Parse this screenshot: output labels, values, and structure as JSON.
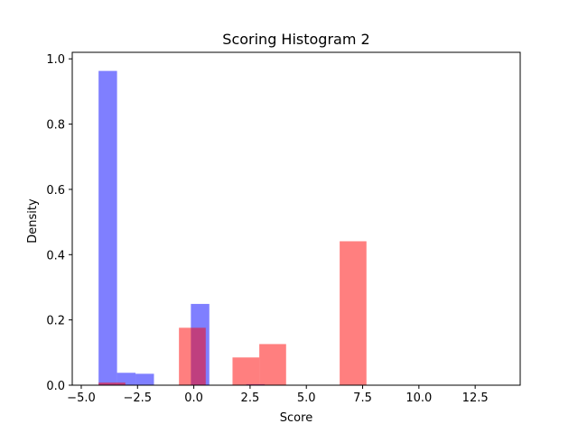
{
  "chart_data": {
    "type": "bar",
    "title": "Scoring Histogram 2",
    "xlabel": "Score",
    "ylabel": "Density",
    "xlim": [
      -5.4,
      14.5
    ],
    "ylim": [
      0,
      1.02
    ],
    "xticks": [
      -5.0,
      -2.5,
      0.0,
      2.5,
      5.0,
      7.5,
      10.0,
      12.5
    ],
    "xtick_labels": [
      "−5.0",
      "−2.5",
      "0.0",
      "2.5",
      "5.0",
      "7.5",
      "10.0",
      "12.5"
    ],
    "yticks": [
      0.0,
      0.2,
      0.4,
      0.6,
      0.8,
      1.0
    ],
    "ytick_labels": [
      "0.0",
      "0.2",
      "0.4",
      "0.6",
      "0.8",
      "1.0"
    ],
    "grid": false,
    "legend": "none",
    "series": [
      {
        "color": "#0000ff",
        "opacity": 0.5,
        "bins": [
          {
            "x0": -4.23,
            "x1": -3.41,
            "value": 0.963
          },
          {
            "x0": -3.41,
            "x1": -2.59,
            "value": 0.038
          },
          {
            "x0": -2.59,
            "x1": -1.77,
            "value": 0.035
          },
          {
            "x0": -0.13,
            "x1": 0.69,
            "value": 0.249
          },
          {
            "x0": 2.33,
            "x1": 3.15,
            "value": 0.003
          }
        ]
      },
      {
        "color": "#ff0000",
        "opacity": 0.5,
        "bins": [
          {
            "x0": -4.23,
            "x1": -3.04,
            "value": 0.008
          },
          {
            "x0": -0.66,
            "x1": 0.53,
            "value": 0.176
          },
          {
            "x0": 1.72,
            "x1": 2.91,
            "value": 0.085
          },
          {
            "x0": 2.91,
            "x1": 4.1,
            "value": 0.126
          },
          {
            "x0": 6.48,
            "x1": 7.67,
            "value": 0.441
          }
        ]
      }
    ]
  }
}
